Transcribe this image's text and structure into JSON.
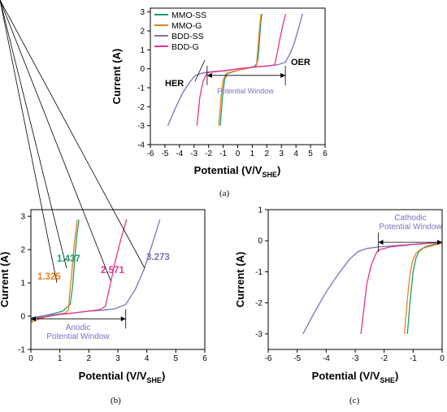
{
  "colors": {
    "mmo_ss": "#1a9e6e",
    "mmo_g": "#f07f1f",
    "bdd_ss": "#7a72c0",
    "bdd_g": "#e8348c"
  },
  "chart_data": [
    {
      "panel": "(a)",
      "type": "line",
      "xlabel": "Potential (V/V",
      "xlabel_sub": "SHE",
      "xlabel_end": ")",
      "ylabel": "Current (A)",
      "xlim": [
        -6,
        6
      ],
      "ylim": [
        -4,
        3.2
      ],
      "xticks": [
        -6,
        -5,
        -4,
        -3,
        -2,
        -1,
        0,
        1,
        2,
        3,
        4,
        5,
        6
      ],
      "yticks": [
        -4,
        -3,
        -2,
        -1,
        0,
        1,
        2,
        3
      ],
      "legend": [
        "MMO-SS",
        "MMO-G",
        "BDD-SS",
        "BDD-G"
      ],
      "legend_position": "top-left",
      "annotations": {
        "her": "HER",
        "oer": "OER",
        "window": "Potential Window"
      },
      "window_range": [
        -2.1,
        3.27
      ],
      "series": [
        {
          "name": "MMO-SS",
          "color": "#1a9e6e",
          "x": [
            -1.2,
            -1.05,
            -0.9,
            -0.7,
            -0.3,
            0.2,
            0.8,
            1.2,
            1.35,
            1.44,
            1.5,
            1.58,
            1.66
          ],
          "y": [
            -3.0,
            -1.5,
            -0.55,
            -0.25,
            -0.15,
            -0.05,
            0.05,
            0.15,
            0.35,
            0.9,
            1.6,
            2.4,
            2.9
          ]
        },
        {
          "name": "MMO-G",
          "color": "#f07f1f",
          "x": [
            -1.3,
            -1.15,
            -1.0,
            -0.8,
            -0.4,
            0.2,
            0.8,
            1.2,
            1.3,
            1.33,
            1.4,
            1.5,
            1.6
          ],
          "y": [
            -3.0,
            -1.5,
            -0.6,
            -0.25,
            -0.15,
            -0.05,
            0.05,
            0.1,
            0.2,
            0.6,
            1.2,
            2.2,
            2.9
          ]
        },
        {
          "name": "BDD-SS",
          "color": "#7a72c0",
          "x": [
            -4.8,
            -4.3,
            -3.8,
            -3.3,
            -2.9,
            -2.4,
            -1.8,
            -1.0,
            0,
            1.0,
            2.0,
            2.8,
            3.27,
            3.6,
            3.9,
            4.2,
            4.45
          ],
          "y": [
            -3.0,
            -2.1,
            -1.3,
            -0.7,
            -0.35,
            -0.22,
            -0.15,
            -0.1,
            0.0,
            0.08,
            0.15,
            0.22,
            0.35,
            0.8,
            1.4,
            2.2,
            2.9
          ]
        },
        {
          "name": "BDD-G",
          "color": "#e8348c",
          "x": [
            -2.8,
            -2.6,
            -2.4,
            -2.2,
            -2.1,
            -1.5,
            -0.8,
            0,
            1.0,
            2.0,
            2.5,
            2.57,
            2.7,
            2.9,
            3.1,
            3.3
          ],
          "y": [
            -3.0,
            -1.5,
            -0.7,
            -0.35,
            -0.2,
            -0.15,
            -0.1,
            0.0,
            0.08,
            0.15,
            0.2,
            0.3,
            0.8,
            1.6,
            2.3,
            2.9
          ]
        }
      ]
    },
    {
      "panel": "(b)",
      "type": "line",
      "xlabel": "Potential (V/V",
      "xlabel_sub": "SHE",
      "xlabel_end": ")",
      "ylabel": "Current (A)",
      "xlim": [
        0,
        6
      ],
      "ylim": [
        -1,
        3.2
      ],
      "xticks": [
        0,
        1,
        2,
        3,
        4,
        5,
        6
      ],
      "yticks": [
        -1,
        0,
        1,
        2,
        3
      ],
      "annotations": [
        {
          "text": "1.437",
          "color": "#1a9e6e",
          "value": 1.437
        },
        {
          "text": "1.325",
          "color": "#f07f1f",
          "value": 1.325
        },
        {
          "text": "2.571",
          "color": "#e8348c",
          "value": 2.571
        },
        {
          "text": "3.273",
          "color": "#7a72c0",
          "value": 3.273
        }
      ],
      "window_label_1": "Anodic",
      "window_label_2": "Potential Window",
      "window_range": [
        0,
        3.273
      ],
      "series": [
        {
          "name": "MMO-SS",
          "color": "#1a9e6e",
          "x": [
            0,
            0.2,
            0.5,
            0.8,
            1.1,
            1.35,
            1.44,
            1.5,
            1.58,
            1.66
          ],
          "y": [
            -0.15,
            -0.05,
            0.02,
            0.08,
            0.15,
            0.35,
            0.9,
            1.6,
            2.4,
            2.9
          ]
        },
        {
          "name": "MMO-G",
          "color": "#f07f1f",
          "x": [
            0,
            0.3,
            0.6,
            0.9,
            1.2,
            1.3,
            1.33,
            1.4,
            1.5,
            1.6
          ],
          "y": [
            -0.2,
            -0.08,
            0.0,
            0.05,
            0.1,
            0.2,
            0.6,
            1.2,
            2.2,
            2.9
          ]
        },
        {
          "name": "BDD-SS",
          "color": "#7a72c0",
          "x": [
            0,
            0.5,
            1.0,
            1.5,
            2.0,
            2.5,
            2.9,
            3.27,
            3.6,
            3.9,
            4.2,
            4.45
          ],
          "y": [
            -0.05,
            0.02,
            0.06,
            0.1,
            0.15,
            0.18,
            0.22,
            0.35,
            0.8,
            1.4,
            2.2,
            2.9
          ]
        },
        {
          "name": "BDD-G",
          "color": "#e8348c",
          "x": [
            0,
            0.5,
            1.0,
            1.5,
            2.0,
            2.4,
            2.57,
            2.7,
            2.9,
            3.1,
            3.3
          ],
          "y": [
            -0.1,
            -0.02,
            0.05,
            0.1,
            0.15,
            0.2,
            0.3,
            0.8,
            1.6,
            2.3,
            2.9
          ]
        }
      ]
    },
    {
      "panel": "(c)",
      "type": "line",
      "xlabel": "Potential (V/V",
      "xlabel_sub": "SHE",
      "xlabel_end": ")",
      "ylabel": "Current (A)",
      "xlim": [
        -6,
        0
      ],
      "ylim": [
        -3.5,
        1
      ],
      "xticks": [
        -6,
        -5,
        -4,
        -3,
        -2,
        -1,
        0
      ],
      "yticks": [
        -3,
        -2,
        -1,
        0,
        1
      ],
      "window_label_1": "Cathodic",
      "window_label_2": "Potential Window",
      "window_range": [
        -2.2,
        0
      ],
      "series": [
        {
          "name": "MMO-SS",
          "color": "#1a9e6e",
          "x": [
            -1.2,
            -1.1,
            -1.0,
            -0.9,
            -0.8,
            -0.6,
            -0.3,
            0
          ],
          "y": [
            -3.0,
            -1.9,
            -1.0,
            -0.55,
            -0.35,
            -0.2,
            -0.12,
            -0.05
          ]
        },
        {
          "name": "MMO-G",
          "color": "#f07f1f",
          "x": [
            -1.3,
            -1.2,
            -1.1,
            -1.0,
            -0.9,
            -0.7,
            -0.3,
            0
          ],
          "y": [
            -3.0,
            -1.9,
            -1.0,
            -0.6,
            -0.4,
            -0.25,
            -0.15,
            -0.08
          ]
        },
        {
          "name": "BDD-SS",
          "color": "#7a72c0",
          "x": [
            -4.8,
            -4.4,
            -4.0,
            -3.6,
            -3.2,
            -2.9,
            -2.6,
            -2.2,
            -1.5,
            -0.8,
            0
          ],
          "y": [
            -3.0,
            -2.3,
            -1.65,
            -1.1,
            -0.6,
            -0.35,
            -0.25,
            -0.2,
            -0.15,
            -0.1,
            -0.05
          ]
        },
        {
          "name": "BDD-G",
          "color": "#e8348c",
          "x": [
            -2.8,
            -2.7,
            -2.6,
            -2.45,
            -2.3,
            -2.2,
            -1.8,
            -1.0,
            -0.4,
            0
          ],
          "y": [
            -3.0,
            -2.2,
            -1.4,
            -0.8,
            -0.45,
            -0.3,
            -0.2,
            -0.12,
            -0.08,
            -0.05
          ]
        }
      ]
    }
  ],
  "captions": [
    "(a)",
    "(b)",
    "(c)"
  ]
}
